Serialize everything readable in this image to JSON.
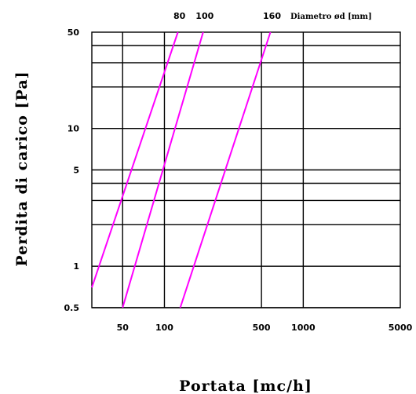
{
  "chart_data": {
    "type": "line",
    "xlabel": "Portata [mc/h]",
    "ylabel": "Perdita di carico [Pa]",
    "xlim": [
      30,
      5000
    ],
    "ylim": [
      0.5,
      50
    ],
    "x_scale": "log",
    "y_scale": "log",
    "x_ticks": [
      "50",
      "100",
      "500",
      "1000",
      "5000"
    ],
    "y_ticks": [
      "0.5",
      "1",
      "5",
      "10",
      "50"
    ],
    "legend_title": "Diametro ød [mm]",
    "grid": true,
    "series": [
      {
        "name": "80",
        "color": "#ff00ff",
        "points": [
          [
            30,
            0.7
          ],
          [
            125,
            50
          ]
        ]
      },
      {
        "name": "100",
        "color": "#ff00ff",
        "points": [
          [
            50,
            0.5
          ],
          [
            190,
            50
          ]
        ]
      },
      {
        "name": "160",
        "color": "#ff00ff",
        "points": [
          [
            130,
            0.5
          ],
          [
            580,
            50
          ]
        ]
      }
    ]
  }
}
